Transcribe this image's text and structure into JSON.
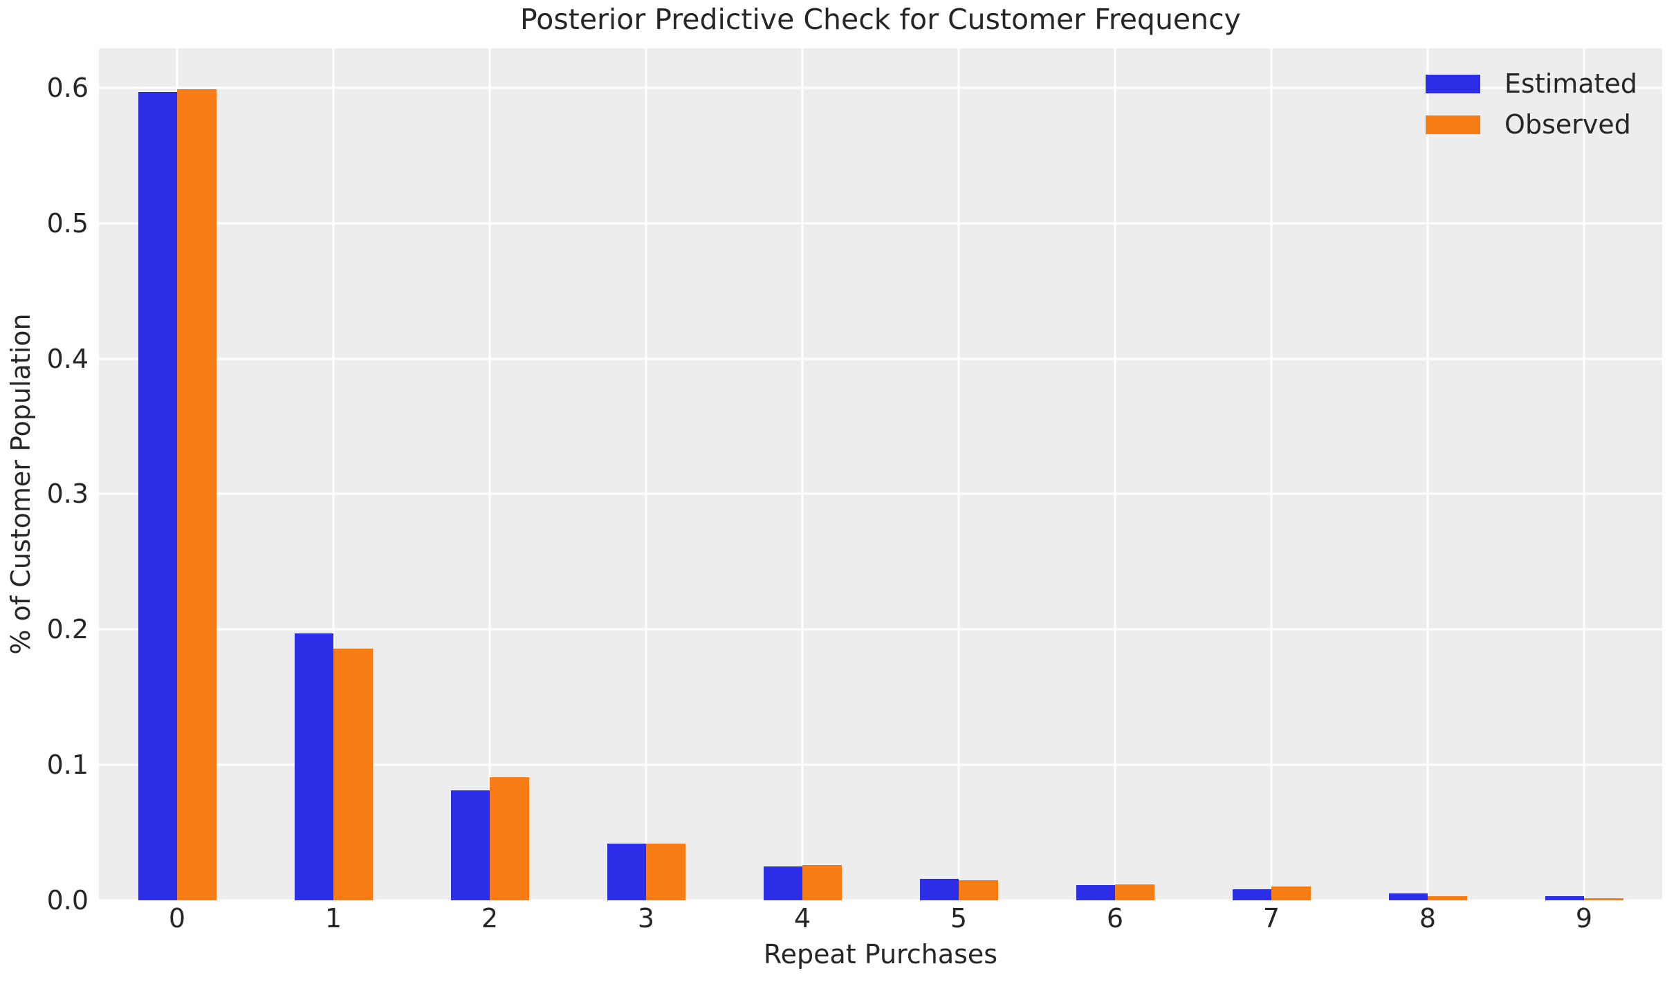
{
  "chart_data": {
    "type": "bar",
    "title": "Posterior Predictive Check for Customer Frequency",
    "xlabel": "Repeat Purchases",
    "ylabel": "% of Customer Population",
    "categories": [
      "0",
      "1",
      "2",
      "3",
      "4",
      "5",
      "6",
      "7",
      "8",
      "9"
    ],
    "series": [
      {
        "name": "Estimated",
        "color": "#2B2EE6",
        "values": [
          0.597,
          0.197,
          0.081,
          0.042,
          0.025,
          0.016,
          0.011,
          0.008,
          0.005,
          0.003
        ]
      },
      {
        "name": "Observed",
        "color": "#F87C16",
        "values": [
          0.599,
          0.186,
          0.091,
          0.042,
          0.026,
          0.015,
          0.012,
          0.01,
          0.003,
          0.0015
        ]
      }
    ],
    "ylim": [
      0,
      0.629
    ],
    "yticks": [
      {
        "value": 0.0,
        "label": "0.0"
      },
      {
        "value": 0.1,
        "label": "0.1"
      },
      {
        "value": 0.2,
        "label": "0.2"
      },
      {
        "value": 0.3,
        "label": "0.3"
      },
      {
        "value": 0.4,
        "label": "0.4"
      },
      {
        "value": 0.5,
        "label": "0.5"
      },
      {
        "value": 0.6,
        "label": "0.6"
      }
    ],
    "grid": true,
    "legend_position": "upper right",
    "bar_width_fraction": 0.25,
    "plot_bg_color": "#EDEDED",
    "grid_color": "#FFFFFF",
    "text_color": "#262626"
  }
}
